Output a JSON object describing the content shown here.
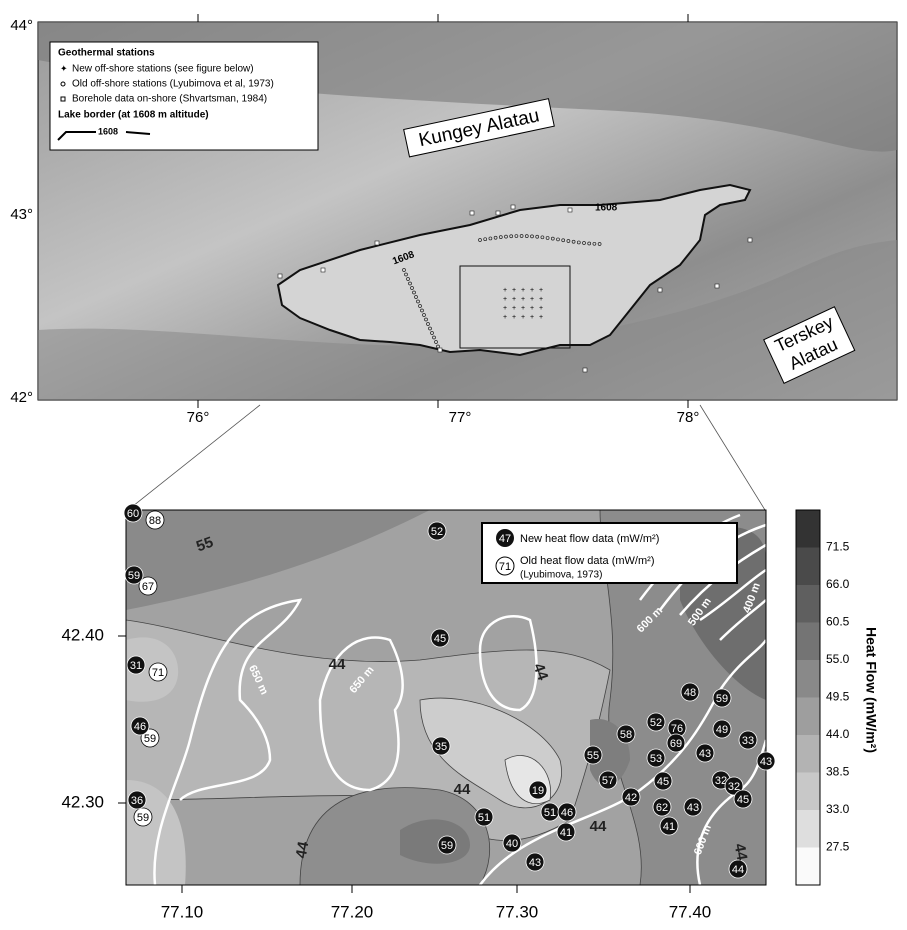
{
  "top_map": {
    "lat_labels": [
      "44°",
      "43°",
      "42°"
    ],
    "lon_labels": [
      "76°",
      "77°",
      "78°"
    ],
    "legend": {
      "title": "Geothermal stations",
      "items": [
        "New off-shore stations (see figure below)",
        "Old off-shore stations (Lyubimova et al, 1973)",
        "Borehole data on-shore (Shvartsman, 1984)"
      ],
      "lake_border": "Lake border (at 1608 m altitude)",
      "lake_sample": "1608"
    },
    "regions": [
      "Kungey Alatau",
      "Terskey",
      "Alatau"
    ],
    "contour_labels": [
      "1608",
      "1608"
    ]
  },
  "bottom_map": {
    "lat_labels": [
      "42.40",
      "42.30"
    ],
    "lon_labels": [
      "77.10",
      "77.20",
      "77.30",
      "77.40"
    ],
    "legend": {
      "new_symbol": "47",
      "new_text": "New heat flow data (mW/m²)",
      "old_symbol": "71",
      "old_text": "Old heat flow data (mW/m²)",
      "old_source": "(Lyubimova, 1973)"
    },
    "new_stations": [
      "60",
      "59",
      "31",
      "46",
      "36",
      "52",
      "45",
      "35",
      "51",
      "59",
      "40",
      "43",
      "19",
      "51",
      "46",
      "41",
      "55",
      "58",
      "57",
      "52",
      "76",
      "69",
      "53",
      "48",
      "59",
      "49",
      "43",
      "45",
      "42",
      "62",
      "43",
      "41",
      "33",
      "43",
      "32",
      "32",
      "45",
      "44"
    ],
    "old_stations": [
      "88",
      "67",
      "71",
      "59",
      "59"
    ],
    "contour_labels": [
      "55",
      "44",
      "44",
      "44",
      "44",
      "44",
      "44"
    ],
    "depth_labels": [
      "650 m",
      "650 m",
      "600 m",
      "500 m",
      "400 m",
      "600 m"
    ]
  },
  "colorbar": {
    "title": "Heat Flow (mW/m²)",
    "labels": [
      "71.5",
      "66.0",
      "60.5",
      "55.0",
      "49.5",
      "44.0",
      "38.5",
      "33.0",
      "27.5"
    ]
  }
}
